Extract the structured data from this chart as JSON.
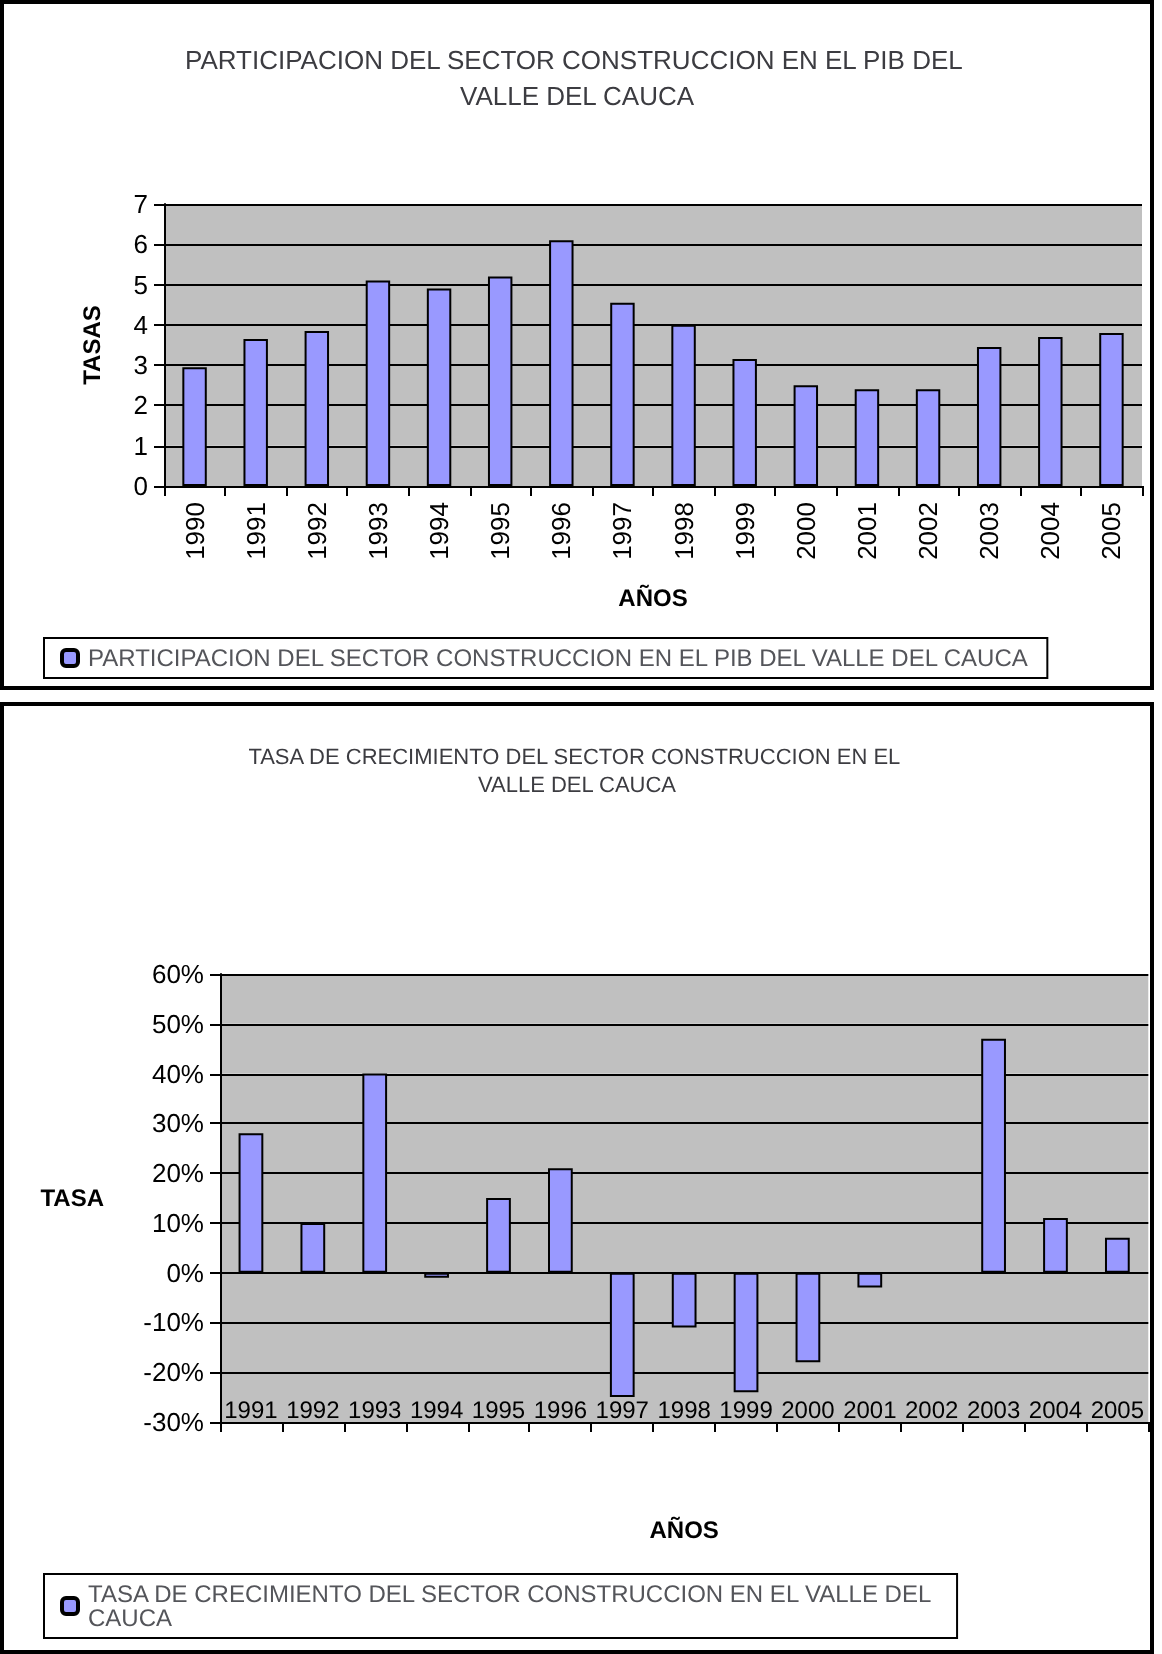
{
  "chart_data": [
    {
      "type": "bar",
      "title": "PARTICIPACION DEL SECTOR CONSTRUCCION EN EL PIB DEL VALLE DEL CAUCA",
      "xlabel": "AÑOS",
      "ylabel": "TASAS",
      "categories": [
        "1990",
        "1991",
        "1992",
        "1993",
        "1994",
        "1995",
        "1996",
        "1997",
        "1998",
        "1999",
        "2000",
        "2001",
        "2002",
        "2003",
        "2004",
        "2005"
      ],
      "series": [
        {
          "name": "PARTICIPACION DEL SECTOR CONSTRUCCION EN EL PIB DEL VALLE DEL CAUCA",
          "color": "#9999ff",
          "values": [
            2.95,
            3.65,
            3.85,
            5.1,
            4.9,
            5.2,
            6.1,
            4.55,
            4.0,
            3.15,
            2.5,
            2.4,
            2.4,
            3.45,
            3.7,
            3.8
          ]
        }
      ],
      "ylim": [
        0,
        7
      ],
      "yticks": [
        0,
        1,
        2,
        3,
        4,
        5,
        6,
        7
      ],
      "grid": "y",
      "legend": "bottom"
    },
    {
      "type": "bar",
      "title": "TASA DE CRECIMIENTO DEL SECTOR CONSTRUCCION EN EL VALLE DEL CAUCA",
      "xlabel": "AÑOS",
      "ylabel": "TASA",
      "categories": [
        "1991",
        "1992",
        "1993",
        "1994",
        "1995",
        "1996",
        "1997",
        "1998",
        "1999",
        "2000",
        "2001",
        "2002",
        "2003",
        "2004",
        "2005"
      ],
      "series": [
        {
          "name": "TASA DE CRECIMIENTO DEL SECTOR CONSTRUCCION EN EL VALLE DEL CAUCA",
          "color": "#9999ff",
          "values": [
            28,
            10,
            40,
            -1,
            15,
            21,
            -25,
            -11,
            -24,
            -18,
            -3,
            null,
            47,
            11,
            7
          ]
        }
      ],
      "ylim": [
        -30,
        60
      ],
      "yticks": [
        {
          "value": -30,
          "label": "-30%"
        },
        {
          "value": -20,
          "label": "-20%"
        },
        {
          "value": -10,
          "label": "-10%"
        },
        {
          "value": 0,
          "label": "0%"
        },
        {
          "value": 10,
          "label": "10%"
        },
        {
          "value": 20,
          "label": "20%"
        },
        {
          "value": 30,
          "label": "30%"
        },
        {
          "value": 40,
          "label": "40%"
        },
        {
          "value": 50,
          "label": "50%"
        },
        {
          "value": 60,
          "label": "60%"
        }
      ],
      "grid": "y",
      "legend": "bottom"
    }
  ]
}
